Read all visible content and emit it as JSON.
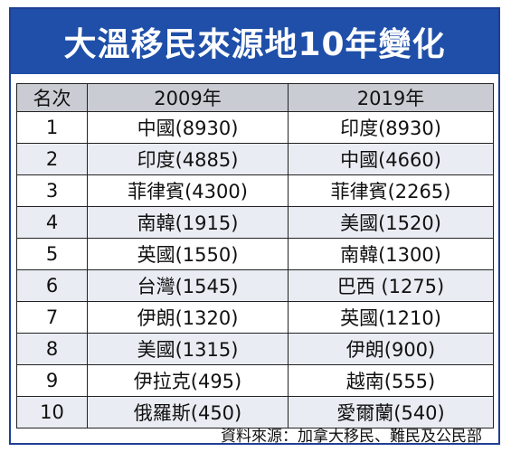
{
  "title": "大溫移民來源地10年變化",
  "table": {
    "headers": [
      "名次",
      "2009年",
      "2019年"
    ],
    "rows": [
      {
        "rank": "1",
        "y2009": "中國(8930)",
        "y2019": "印度(8930)"
      },
      {
        "rank": "2",
        "y2009": "印度(4885)",
        "y2019": "中國(4660)"
      },
      {
        "rank": "3",
        "y2009": "菲律賓(4300)",
        "y2019": "菲律賓(2265)"
      },
      {
        "rank": "4",
        "y2009": "南韓(1915)",
        "y2019": "美國(1520)"
      },
      {
        "rank": "5",
        "y2009": "英國(1550)",
        "y2019": "南韓(1300)"
      },
      {
        "rank": "6",
        "y2009": "台灣(1545)",
        "y2019": "巴西 (1275)"
      },
      {
        "rank": "7",
        "y2009": "伊朗(1320)",
        "y2019": "英國(1210)"
      },
      {
        "rank": "8",
        "y2009": "美國(1315)",
        "y2019": "伊朗(900)"
      },
      {
        "rank": "9",
        "y2009": "伊拉克(495)",
        "y2019": "越南(555)"
      },
      {
        "rank": "10",
        "y2009": "俄羅斯(450)",
        "y2019": "愛爾蘭(540)"
      }
    ]
  },
  "source": "資料來源：加拿大移民、難民及公民部",
  "colors": {
    "title_bg": "#1f4fa8",
    "header_bg": "#c9ccd3",
    "stripe": "#e9ecf2"
  }
}
